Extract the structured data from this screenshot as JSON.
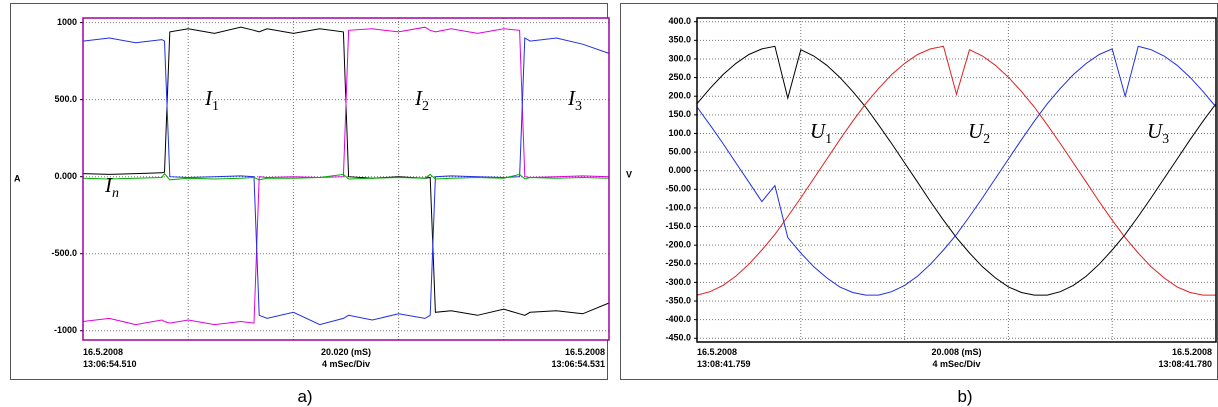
{
  "chart_data": [
    {
      "type": "line",
      "caption": "a)",
      "y_label": "A",
      "x": [
        0,
        1,
        2,
        3,
        3.1,
        3.3,
        4,
        5,
        6,
        6.5,
        6.7,
        7,
        8,
        9,
        9.9,
        10.1,
        11,
        12,
        13,
        13.2,
        13.4,
        14,
        15,
        16,
        16.6,
        16.8,
        17,
        18,
        19,
        20
      ],
      "xlim": [
        0,
        20
      ],
      "xticks": [
        0,
        4,
        8,
        12,
        16,
        20
      ],
      "ylim": [
        -1060,
        1030
      ],
      "yticks": [
        1000,
        {
          "value": 500,
          "label": "500.0"
        },
        {
          "value": 0,
          "label": "0.000"
        },
        {
          "value": -500,
          "label": "-500.0"
        },
        -1000
      ],
      "grid": true,
      "series": [
        {
          "name": "I1",
          "color": "#000000",
          "values": [
            20,
            15,
            20,
            25,
            30,
            940,
            960,
            930,
            970,
            950,
            940,
            960,
            930,
            960,
            940,
            0,
            -10,
            0,
            -10,
            -5,
            -880,
            -870,
            -900,
            -860,
            -890,
            -900,
            -880,
            -870,
            -890,
            -820
          ]
        },
        {
          "name": "I2",
          "color": "#e000e0",
          "values": [
            -940,
            -920,
            -960,
            -930,
            -940,
            -950,
            -930,
            -960,
            -940,
            -950,
            0,
            -5,
            0,
            -5,
            0,
            950,
            960,
            940,
            970,
            950,
            940,
            960,
            930,
            960,
            950,
            0,
            -5,
            0,
            5,
            0
          ]
        },
        {
          "name": "I3",
          "color": "#2030e0",
          "values": [
            880,
            900,
            870,
            890,
            880,
            0,
            -5,
            0,
            5,
            0,
            -900,
            -920,
            -880,
            -960,
            -920,
            -900,
            -930,
            -890,
            -920,
            -900,
            0,
            5,
            0,
            -5,
            0,
            900,
            880,
            900,
            860,
            800
          ]
        },
        {
          "name": "In",
          "color": "#00b000",
          "values": [
            -10,
            -15,
            -10,
            -5,
            20,
            -20,
            -10,
            -15,
            -10,
            -5,
            -20,
            -10,
            -10,
            -5,
            15,
            -15,
            -10,
            -5,
            -10,
            15,
            -15,
            -10,
            -5,
            -10,
            15,
            -15,
            -5,
            -10,
            -5,
            -10
          ]
        }
      ],
      "annotations": [
        {
          "text": "I",
          "sub": "1"
        },
        {
          "text": "I",
          "sub": "2"
        },
        {
          "text": "I",
          "sub": "3"
        },
        {
          "text": "I",
          "sub": "n"
        }
      ],
      "x_labels": {
        "left": [
          "16.5.2008",
          "13:06:54.510"
        ],
        "center": [
          "20.020 (mS)",
          "4 mSec/Div"
        ],
        "right": [
          "16.5.2008",
          "13:06:54.531"
        ]
      }
    },
    {
      "type": "line",
      "caption": "b)",
      "y_label": "V",
      "x": [
        0,
        0.5,
        1,
        1.5,
        2,
        2.5,
        3,
        3.5,
        4,
        4.5,
        5,
        5.5,
        6,
        6.5,
        7,
        7.5,
        8,
        8.5,
        9,
        9.5,
        10,
        10.5,
        11,
        11.5,
        12,
        12.5,
        13,
        13.5,
        14,
        14.5,
        15,
        15.5,
        16,
        16.5,
        17,
        17.5,
        18,
        18.5,
        19,
        19.5,
        20
      ],
      "xlim": [
        0,
        20
      ],
      "xticks": [
        0,
        4,
        8,
        12,
        16,
        20
      ],
      "ylim": [
        -460,
        410
      ],
      "yticks": [
        {
          "value": 400,
          "label": "400.0"
        },
        {
          "value": 350,
          "label": "350.0"
        },
        {
          "value": 300,
          "label": "300.0"
        },
        {
          "value": 250,
          "label": "250.0"
        },
        {
          "value": 200,
          "label": "200.0"
        },
        {
          "value": 150,
          "label": "150.0"
        },
        {
          "value": 100,
          "label": "100.0"
        },
        {
          "value": 50,
          "label": "50.00"
        },
        {
          "value": 0,
          "label": "0.000"
        },
        {
          "value": -50,
          "label": "-50.00"
        },
        {
          "value": -100,
          "label": "-100.0"
        },
        {
          "value": -150,
          "label": "-150.0"
        },
        {
          "value": -200,
          "label": "-200.0"
        },
        {
          "value": -250,
          "label": "-250.0"
        },
        {
          "value": -300,
          "label": "-300.0"
        },
        {
          "value": -350,
          "label": "-350.0"
        },
        {
          "value": -400,
          "label": "-400.0"
        },
        {
          "value": -450,
          "label": "-450.0"
        }
      ],
      "grid": true,
      "series": [
        {
          "name": "U1",
          "color": "#000000",
          "values": [
            180,
            221,
            258,
            288,
            312,
            327,
            334,
            195,
            325,
            308,
            283,
            251,
            213,
            171,
            123,
            73,
            21,
            -31,
            -83,
            -133,
            -180,
            -221,
            -258,
            -288,
            -312,
            -327,
            -334,
            -334,
            -325,
            -308,
            -283,
            -251,
            -213,
            -171,
            -123,
            -73,
            -21,
            31,
            83,
            133,
            180
          ]
        },
        {
          "name": "U2",
          "color": "#e02020",
          "values": [
            -334,
            -325,
            -308,
            -283,
            -251,
            -213,
            -171,
            -123,
            -73,
            -21,
            31,
            83,
            133,
            180,
            221,
            258,
            288,
            312,
            327,
            334,
            205,
            325,
            308,
            283,
            251,
            213,
            171,
            123,
            73,
            21,
            -31,
            -83,
            -133,
            -180,
            -221,
            -258,
            -288,
            -312,
            -327,
            -334,
            -334
          ]
        },
        {
          "name": "U3",
          "color": "#2030e0",
          "values": [
            171,
            123,
            73,
            21,
            -31,
            -83,
            -40,
            -180,
            -221,
            -258,
            -288,
            -312,
            -327,
            -334,
            -334,
            -325,
            -308,
            -283,
            -251,
            -213,
            -171,
            -123,
            -73,
            -21,
            31,
            83,
            133,
            180,
            221,
            258,
            288,
            312,
            327,
            200,
            334,
            325,
            308,
            283,
            251,
            213,
            171
          ]
        }
      ],
      "annotations": [
        {
          "text": "U",
          "sub": "1"
        },
        {
          "text": "U",
          "sub": "2"
        },
        {
          "text": "U",
          "sub": "3"
        }
      ],
      "x_labels": {
        "left": [
          "16.5.2008",
          "13:08:41.759"
        ],
        "center": [
          "20.008 (mS)",
          "4 mSec/Div"
        ],
        "right": [
          "16.5.2008",
          "13:08:41.780"
        ]
      }
    }
  ]
}
